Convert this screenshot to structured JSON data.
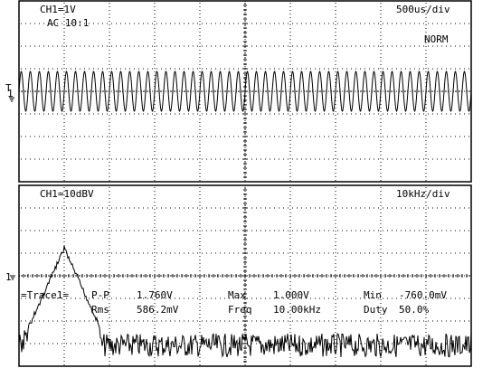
{
  "top_panel": {
    "channel_scale": "CH1=1V",
    "coupling": "AC  10:1",
    "timebase": "500us/div",
    "trigger_mode": "NORM",
    "ground_marker": "1",
    "trigger_marker": "T"
  },
  "bottom_panel": {
    "channel_scale": "CH1=10dBV",
    "span": "10kHz/div",
    "ground_marker": "1"
  },
  "measurements": {
    "trace_label": "=Trace1=",
    "pp_label": "P-P",
    "pp_value": "1.760V",
    "max_label": "Max",
    "max_value": "1.000V",
    "min_label": "Min",
    "min_value": "-760.0mV",
    "rms_label": "Rms",
    "rms_value": "586.2mV",
    "freq_label": "Freq",
    "freq_value": "10.00kHz",
    "duty_label": "Duty",
    "duty_value": "50.0%"
  },
  "waveform": {
    "cycles_shown": 50,
    "frequency_khz": 10.0,
    "vpp_volts": 1.76
  },
  "spectrum": {
    "peak_frequency_khz": 10.0
  }
}
